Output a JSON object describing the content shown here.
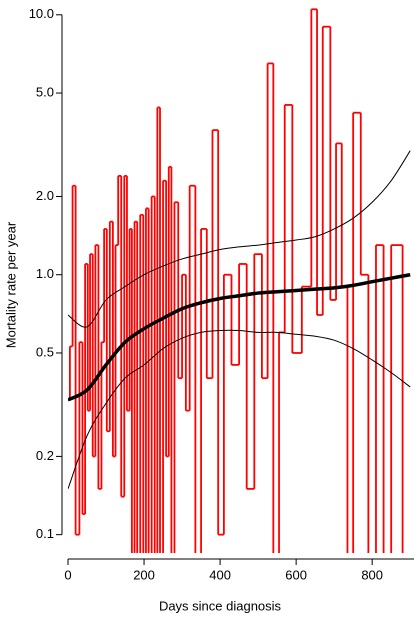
{
  "chart_data": {
    "type": "line",
    "log_y": true,
    "xlabel": "Days since diagnosis",
    "ylabel": "Mortality rate per year",
    "xlim": [
      0,
      910
    ],
    "ylim": [
      0.085,
      11.4
    ],
    "xticks": [
      0,
      200,
      400,
      600,
      800
    ],
    "yticks": [
      {
        "value": 10,
        "label": "10.0"
      },
      {
        "value": 5,
        "label": "5.0"
      },
      {
        "value": 2,
        "label": "2.0"
      },
      {
        "value": 1,
        "label": "1.0"
      },
      0.5,
      0.2,
      0.1
    ],
    "series": [
      {
        "color": "#ff0000",
        "style": "step",
        "x": [
          0,
          5,
          12,
          20,
          30,
          38,
          45,
          52,
          58,
          65,
          72,
          80,
          88,
          95,
          102,
          110,
          118,
          125,
          132,
          140,
          148,
          155,
          162,
          168,
          175,
          182,
          190,
          198,
          205,
          212,
          220,
          228,
          235,
          242,
          250,
          258,
          265,
          272,
          280,
          290,
          300,
          310,
          320,
          335,
          350,
          365,
          380,
          395,
          410,
          430,
          450,
          470,
          490,
          510,
          525,
          540,
          555,
          570,
          590,
          615,
          640,
          655,
          670,
          690,
          705,
          720,
          735,
          750,
          770,
          790,
          810,
          830,
          850,
          880
        ],
        "values": [
          0.33,
          0.53,
          2.2,
          0.1,
          0.55,
          0.12,
          1.1,
          0.3,
          1.2,
          0.2,
          1.3,
          0.15,
          0.55,
          1.5,
          0.25,
          1.6,
          0.2,
          1.3,
          2.4,
          0.14,
          2.4,
          0.3,
          1.5,
          0.05,
          1.6,
          0.05,
          1.7,
          0.05,
          1.8,
          0.05,
          2.0,
          0.05,
          4.4,
          0.05,
          2.3,
          0.2,
          2.6,
          0.05,
          1.9,
          0.4,
          1.0,
          0.3,
          2.2,
          0.05,
          1.5,
          0.4,
          3.6,
          0.1,
          1.0,
          0.45,
          1.1,
          0.15,
          1.2,
          0.4,
          6.5,
          0.05,
          0.6,
          4.5,
          0.5,
          0.9,
          10.5,
          0.7,
          9.0,
          0.8,
          3.2,
          0.9,
          0.05,
          4.2,
          1.0,
          0.05,
          1.3,
          0.05,
          1.3,
          0.05
        ]
      },
      {
        "color": "#000000",
        "style": "smooth",
        "x": [
          0,
          50,
          100,
          150,
          200,
          250,
          300,
          350,
          400,
          450,
          500,
          550,
          600,
          650,
          700,
          750,
          800,
          850,
          900
        ],
        "values": [
          0.33,
          0.36,
          0.45,
          0.55,
          0.62,
          0.68,
          0.74,
          0.78,
          0.81,
          0.83,
          0.85,
          0.86,
          0.87,
          0.88,
          0.89,
          0.91,
          0.94,
          0.97,
          1.0
        ]
      },
      {
        "color": "#000000",
        "style": "band",
        "x": [
          0,
          50,
          100,
          150,
          200,
          250,
          300,
          350,
          400,
          450,
          500,
          550,
          600,
          650,
          700,
          750,
          800,
          850,
          900
        ],
        "values": [
          0.7,
          0.63,
          0.8,
          0.9,
          1.0,
          1.08,
          1.15,
          1.2,
          1.25,
          1.28,
          1.3,
          1.33,
          1.36,
          1.4,
          1.5,
          1.65,
          1.9,
          2.3,
          3.0
        ]
      },
      {
        "color": "#000000",
        "style": "band",
        "x": [
          0,
          50,
          100,
          150,
          200,
          250,
          300,
          350,
          400,
          450,
          500,
          550,
          600,
          650,
          700,
          750,
          800,
          850,
          900
        ],
        "values": [
          0.15,
          0.24,
          0.32,
          0.4,
          0.45,
          0.52,
          0.57,
          0.6,
          0.61,
          0.61,
          0.6,
          0.6,
          0.59,
          0.58,
          0.56,
          0.52,
          0.47,
          0.42,
          0.37
        ]
      }
    ]
  }
}
